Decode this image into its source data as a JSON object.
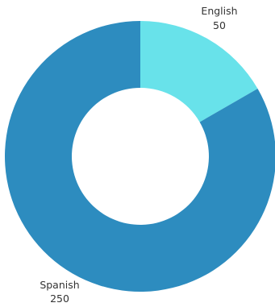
{
  "chart_data": {
    "type": "pie",
    "categories": [
      "English",
      "Spanish"
    ],
    "values": [
      50,
      250
    ],
    "colors": [
      "#68e2ea",
      "#2d8cbf"
    ],
    "donut": true
  }
}
